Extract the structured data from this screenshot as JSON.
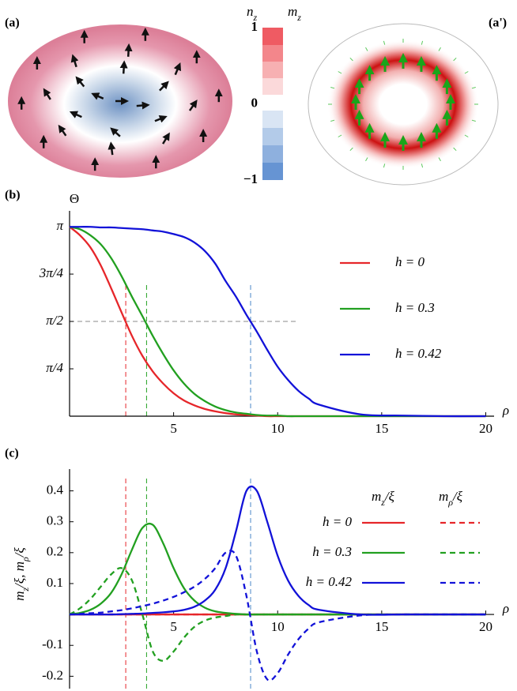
{
  "panels": {
    "a": "(a)",
    "a_prime": "(a')",
    "b": "(b)",
    "c": "(c)"
  },
  "colorbar": {
    "labels": [
      [
        {
          "t": "n"
        },
        {
          "t": "z",
          "sub": true
        }
      ],
      [
        {
          "t": "m"
        },
        {
          "t": "z",
          "sub": true
        }
      ]
    ],
    "ticks": [
      1,
      0,
      {
        "value": -1,
        "label": "−1"
      }
    ],
    "lim": [
      -1,
      1
    ]
  },
  "chart_data": [
    {
      "type": "line",
      "y_label": "Θ",
      "x_label": "ρ",
      "x": [
        0,
        0.5,
        1,
        1.5,
        2,
        2.5,
        3,
        3.5,
        4,
        4.5,
        5,
        5.5,
        6,
        6.5,
        7,
        7.5,
        8,
        8.5,
        9,
        9.5,
        10,
        10.5,
        11,
        11.5,
        12,
        14,
        16,
        18,
        20
      ],
      "xlim": [
        0,
        20.4
      ],
      "xticks": [
        5,
        10,
        15,
        20
      ],
      "ylim": [
        0,
        3.3
      ],
      "yticks": [
        {
          "value": 3.14159,
          "label": "π"
        },
        {
          "value": 2.35619,
          "label": "3π/4"
        },
        {
          "value": 1.5708,
          "label": "π/2"
        },
        {
          "value": 0.7854,
          "label": "π/4"
        }
      ],
      "series": [
        {
          "name": "h = 0",
          "color": "#e6262a",
          "values": [
            3.14,
            3.0,
            2.8,
            2.5,
            2.12,
            1.72,
            1.33,
            1.0,
            0.74,
            0.54,
            0.38,
            0.26,
            0.18,
            0.12,
            0.08,
            0.05,
            0.03,
            0.02,
            0.01,
            0,
            0,
            0,
            0,
            0,
            0,
            0,
            0,
            0,
            0
          ]
        },
        {
          "name": "h = 0.3",
          "color": "#22a020",
          "values": [
            3.14,
            3.1,
            3.0,
            2.85,
            2.62,
            2.32,
            1.98,
            1.66,
            1.33,
            1.03,
            0.76,
            0.54,
            0.37,
            0.25,
            0.16,
            0.1,
            0.06,
            0.04,
            0.02,
            0.01,
            0.01,
            0,
            0,
            0,
            0,
            0,
            0,
            0,
            0
          ]
        },
        {
          "name": "h = 0.42",
          "color": "#1212d8",
          "values": [
            3.14,
            3.14,
            3.14,
            3.13,
            3.13,
            3.12,
            3.11,
            3.1,
            3.08,
            3.06,
            3.02,
            2.97,
            2.88,
            2.74,
            2.53,
            2.24,
            1.98,
            1.68,
            1.4,
            1.1,
            0.82,
            0.6,
            0.42,
            0.29,
            0.19,
            0.03,
            0.01,
            0,
            0
          ]
        }
      ],
      "vlines": {
        "x": [
          2.7,
          3.7,
          8.7
        ],
        "colors": [
          "#e6262a",
          "#22a020",
          "#4a86c8"
        ],
        "y_to": 2.2
      },
      "hline": {
        "y": 1.5708,
        "x_to": 11,
        "color": "#888888"
      }
    },
    {
      "type": "line",
      "y_label": [
        {
          "t": "m"
        },
        {
          "t": "z",
          "sub": true
        },
        {
          "t": "/ξ, m"
        },
        {
          "t": "ρ",
          "sub": true
        },
        {
          "t": "/ξ"
        }
      ],
      "x_label": "ρ",
      "x": [
        0,
        0.5,
        1,
        1.5,
        2,
        2.5,
        3,
        3.5,
        4,
        4.5,
        5,
        5.5,
        6,
        6.5,
        7,
        7.5,
        8,
        8.5,
        9,
        9.5,
        10,
        10.5,
        11,
        11.5,
        12,
        14,
        16,
        18,
        20
      ],
      "xlim": [
        0,
        20.4
      ],
      "xticks": [
        5,
        10,
        15,
        20
      ],
      "ylim": [
        -0.24,
        0.45
      ],
      "yticks": [
        -0.2,
        -0.1,
        0.1,
        0.2,
        0.3,
        0.4
      ],
      "legend_columns": [
        [
          {
            "t": "m"
          },
          {
            "t": "z",
            "sub": true
          },
          {
            "t": "/ξ"
          }
        ],
        [
          {
            "t": "m"
          },
          {
            "t": "ρ",
            "sub": true
          },
          {
            "t": "/ξ"
          }
        ]
      ],
      "series": [
        {
          "name": "h = 0",
          "color": "#e6262a",
          "mz": [
            0,
            0,
            0,
            0,
            0,
            0,
            0,
            0,
            0,
            0,
            0,
            0,
            0,
            0,
            0,
            0,
            0,
            0,
            0,
            0,
            0,
            0,
            0,
            0,
            0,
            0,
            0,
            0,
            0
          ],
          "mrho": [
            0,
            0,
            0,
            0,
            0,
            0,
            0,
            0,
            0,
            0,
            0,
            0,
            0,
            0,
            0,
            0,
            0,
            0,
            0,
            0,
            0,
            0,
            0,
            0,
            0,
            0,
            0,
            0,
            0
          ]
        },
        {
          "name": "h = 0.3",
          "color": "#22a020",
          "mz": [
            0,
            0.005,
            0.015,
            0.035,
            0.07,
            0.13,
            0.21,
            0.28,
            0.29,
            0.23,
            0.15,
            0.085,
            0.045,
            0.022,
            0.01,
            0.005,
            0.002,
            0,
            0,
            0,
            0,
            0,
            0,
            0,
            0,
            0,
            0,
            0,
            0
          ],
          "mrho": [
            0,
            0.02,
            0.05,
            0.09,
            0.13,
            0.15,
            0.11,
            0,
            -0.12,
            -0.15,
            -0.12,
            -0.075,
            -0.04,
            -0.02,
            -0.01,
            -0.005,
            0,
            0,
            0,
            0,
            0,
            0,
            0,
            0,
            0,
            0,
            0,
            0,
            0
          ]
        },
        {
          "name": "h = 0.42",
          "color": "#1212d8",
          "mz": [
            0,
            0,
            0,
            0,
            0,
            0.001,
            0.002,
            0.003,
            0.005,
            0.007,
            0.01,
            0.015,
            0.025,
            0.045,
            0.08,
            0.15,
            0.27,
            0.4,
            0.4,
            0.3,
            0.19,
            0.11,
            0.06,
            0.03,
            0.015,
            0,
            0,
            0,
            0
          ],
          "mrho": [
            0,
            0.002,
            0.004,
            0.006,
            0.01,
            0.014,
            0.02,
            0.027,
            0.035,
            0.045,
            0.057,
            0.072,
            0.09,
            0.115,
            0.15,
            0.2,
            0.19,
            0.06,
            -0.12,
            -0.21,
            -0.19,
            -0.13,
            -0.08,
            -0.045,
            -0.025,
            -0.003,
            0,
            0,
            0
          ]
        }
      ],
      "vlines": {
        "x": [
          2.7,
          3.7,
          8.7
        ],
        "colors": [
          "#e6262a",
          "#22a020",
          "#4a86c8"
        ]
      }
    }
  ]
}
